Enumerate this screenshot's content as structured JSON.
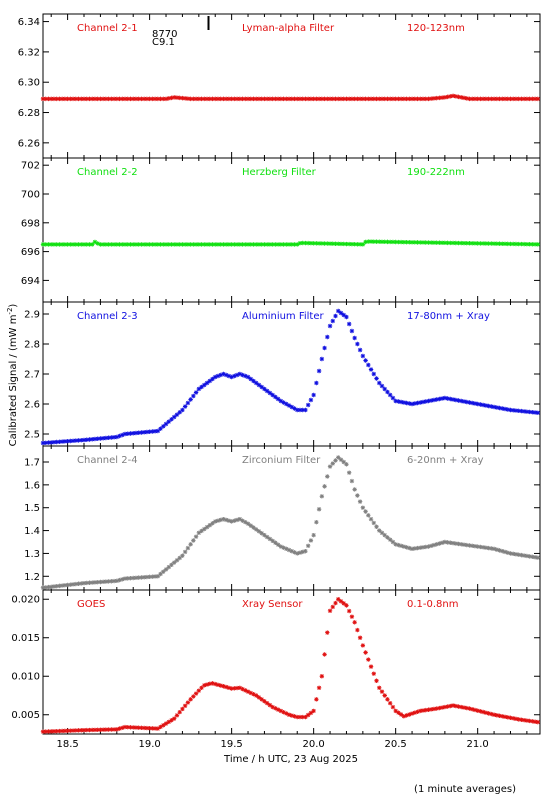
{
  "figure": {
    "ylabel": "Calibrated Signal / (mW m",
    "ylabel_sup": "-2",
    "ylabel_end": ")",
    "xlabel": "Time / h UTC, 23 Aug 2025",
    "footnote": "(1 minute averages)",
    "marker_label_1": "8770",
    "marker_label_2": "C9.1"
  },
  "chart_data": [
    {
      "type": "scatter",
      "channel": "Channel 2-1",
      "filter": "Lyman-alpha Filter",
      "band": "120-123nm",
      "color": "#e01010",
      "ylim": [
        6.25,
        6.345
      ],
      "yticks": [
        "6.26",
        "6.28",
        "6.30",
        "6.32",
        "6.34"
      ],
      "xlim": [
        18.35,
        21.38
      ],
      "xticks": [
        "18.5",
        "19.0",
        "19.5",
        "20.0",
        "20.5",
        "21.0"
      ],
      "series": [
        {
          "x": [
            18.35,
            19.1,
            19.15,
            19.25,
            20.7,
            20.8,
            20.85,
            20.95,
            21.38
          ],
          "y": [
            6.289,
            6.289,
            6.29,
            6.289,
            6.289,
            6.29,
            6.291,
            6.289,
            6.289
          ]
        }
      ]
    },
    {
      "type": "scatter",
      "channel": "Channel 2-2",
      "filter": "Herzberg Filter",
      "band": "190-222nm",
      "color": "#10e010",
      "ylim": [
        692.5,
        702.5
      ],
      "yticks": [
        "694",
        "696",
        "698",
        "700",
        "702"
      ],
      "xlim": [
        18.35,
        21.38
      ],
      "xticks": [
        "18.5",
        "19.0",
        "19.5",
        "20.0",
        "20.5",
        "21.0"
      ],
      "series": [
        {
          "x": [
            18.35,
            18.65,
            18.67,
            18.69,
            19.9,
            19.92,
            20.3,
            20.32,
            21.38
          ],
          "y": [
            696.5,
            696.5,
            696.7,
            696.5,
            696.5,
            696.6,
            696.5,
            696.7,
            696.5
          ]
        }
      ]
    },
    {
      "type": "scatter",
      "channel": "Channel 2-3",
      "filter": "Aluminium Filter",
      "band": "17-80nm + Xray",
      "color": "#1010e0",
      "ylim": [
        2.46,
        2.94
      ],
      "yticks": [
        "2.5",
        "2.6",
        "2.7",
        "2.8",
        "2.9"
      ],
      "xlim": [
        18.35,
        21.38
      ],
      "xticks": [
        "18.5",
        "19.0",
        "19.5",
        "20.0",
        "20.5",
        "21.0"
      ],
      "series": [
        {
          "x": [
            18.35,
            18.6,
            18.8,
            18.85,
            19.05,
            19.2,
            19.3,
            19.4,
            19.45,
            19.5,
            19.55,
            19.6,
            19.7,
            19.8,
            19.9,
            19.95,
            20.0,
            20.05,
            20.1,
            20.15,
            20.2,
            20.25,
            20.3,
            20.4,
            20.5,
            20.6,
            20.7,
            20.8,
            20.9,
            21.0,
            21.1,
            21.2,
            21.38
          ],
          "y": [
            2.47,
            2.48,
            2.49,
            2.5,
            2.51,
            2.58,
            2.65,
            2.69,
            2.7,
            2.69,
            2.7,
            2.69,
            2.65,
            2.61,
            2.58,
            2.58,
            2.63,
            2.75,
            2.86,
            2.91,
            2.89,
            2.82,
            2.76,
            2.67,
            2.61,
            2.6,
            2.61,
            2.62,
            2.61,
            2.6,
            2.59,
            2.58,
            2.57
          ]
        }
      ]
    },
    {
      "type": "scatter",
      "channel": "Channel 2-4",
      "filter": "Zirconium Filter",
      "band": "6-20nm + Xray",
      "color": "#808080",
      "ylim": [
        1.14,
        1.77
      ],
      "yticks": [
        "1.2",
        "1.3",
        "1.4",
        "1.5",
        "1.6",
        "1.7"
      ],
      "xlim": [
        18.35,
        21.38
      ],
      "xticks": [
        "18.5",
        "19.0",
        "19.5",
        "20.0",
        "20.5",
        "21.0"
      ],
      "series": [
        {
          "x": [
            18.35,
            18.6,
            18.8,
            18.85,
            19.05,
            19.2,
            19.3,
            19.4,
            19.45,
            19.5,
            19.55,
            19.6,
            19.7,
            19.8,
            19.9,
            19.95,
            20.0,
            20.05,
            20.1,
            20.15,
            20.2,
            20.25,
            20.3,
            20.4,
            20.5,
            20.6,
            20.7,
            20.8,
            20.9,
            21.0,
            21.1,
            21.2,
            21.38
          ],
          "y": [
            1.15,
            1.17,
            1.18,
            1.19,
            1.2,
            1.29,
            1.39,
            1.44,
            1.45,
            1.44,
            1.45,
            1.43,
            1.38,
            1.33,
            1.3,
            1.31,
            1.38,
            1.55,
            1.68,
            1.72,
            1.69,
            1.58,
            1.5,
            1.4,
            1.34,
            1.32,
            1.33,
            1.35,
            1.34,
            1.33,
            1.32,
            1.3,
            1.28
          ]
        }
      ]
    },
    {
      "type": "scatter",
      "channel": "GOES",
      "filter": "Xray Sensor",
      "band": "0.1-0.8nm",
      "color": "#e01010",
      "ylim": [
        0.0025,
        0.0212
      ],
      "yticks": [
        "0.005",
        "0.010",
        "0.015",
        "0.020"
      ],
      "xlim": [
        18.35,
        21.38
      ],
      "xticks": [
        "18.5",
        "19.0",
        "19.5",
        "20.0",
        "20.5",
        "21.0"
      ],
      "series": [
        {
          "x": [
            18.35,
            18.6,
            18.8,
            18.85,
            18.95,
            19.05,
            19.15,
            19.25,
            19.33,
            19.38,
            19.45,
            19.5,
            19.55,
            19.65,
            19.75,
            19.85,
            19.9,
            19.95,
            20.0,
            20.05,
            20.1,
            20.15,
            20.2,
            20.25,
            20.3,
            20.4,
            20.5,
            20.55,
            20.65,
            20.75,
            20.85,
            20.95,
            21.1,
            21.25,
            21.38
          ],
          "y": [
            0.0028,
            0.003,
            0.0031,
            0.0034,
            0.0033,
            0.0032,
            0.0045,
            0.007,
            0.0088,
            0.0091,
            0.0087,
            0.0084,
            0.0085,
            0.0075,
            0.006,
            0.005,
            0.0047,
            0.0047,
            0.0055,
            0.01,
            0.0185,
            0.02,
            0.0192,
            0.017,
            0.014,
            0.0085,
            0.0055,
            0.0048,
            0.0055,
            0.0058,
            0.0062,
            0.0058,
            0.005,
            0.0044,
            0.004
          ]
        }
      ]
    }
  ]
}
